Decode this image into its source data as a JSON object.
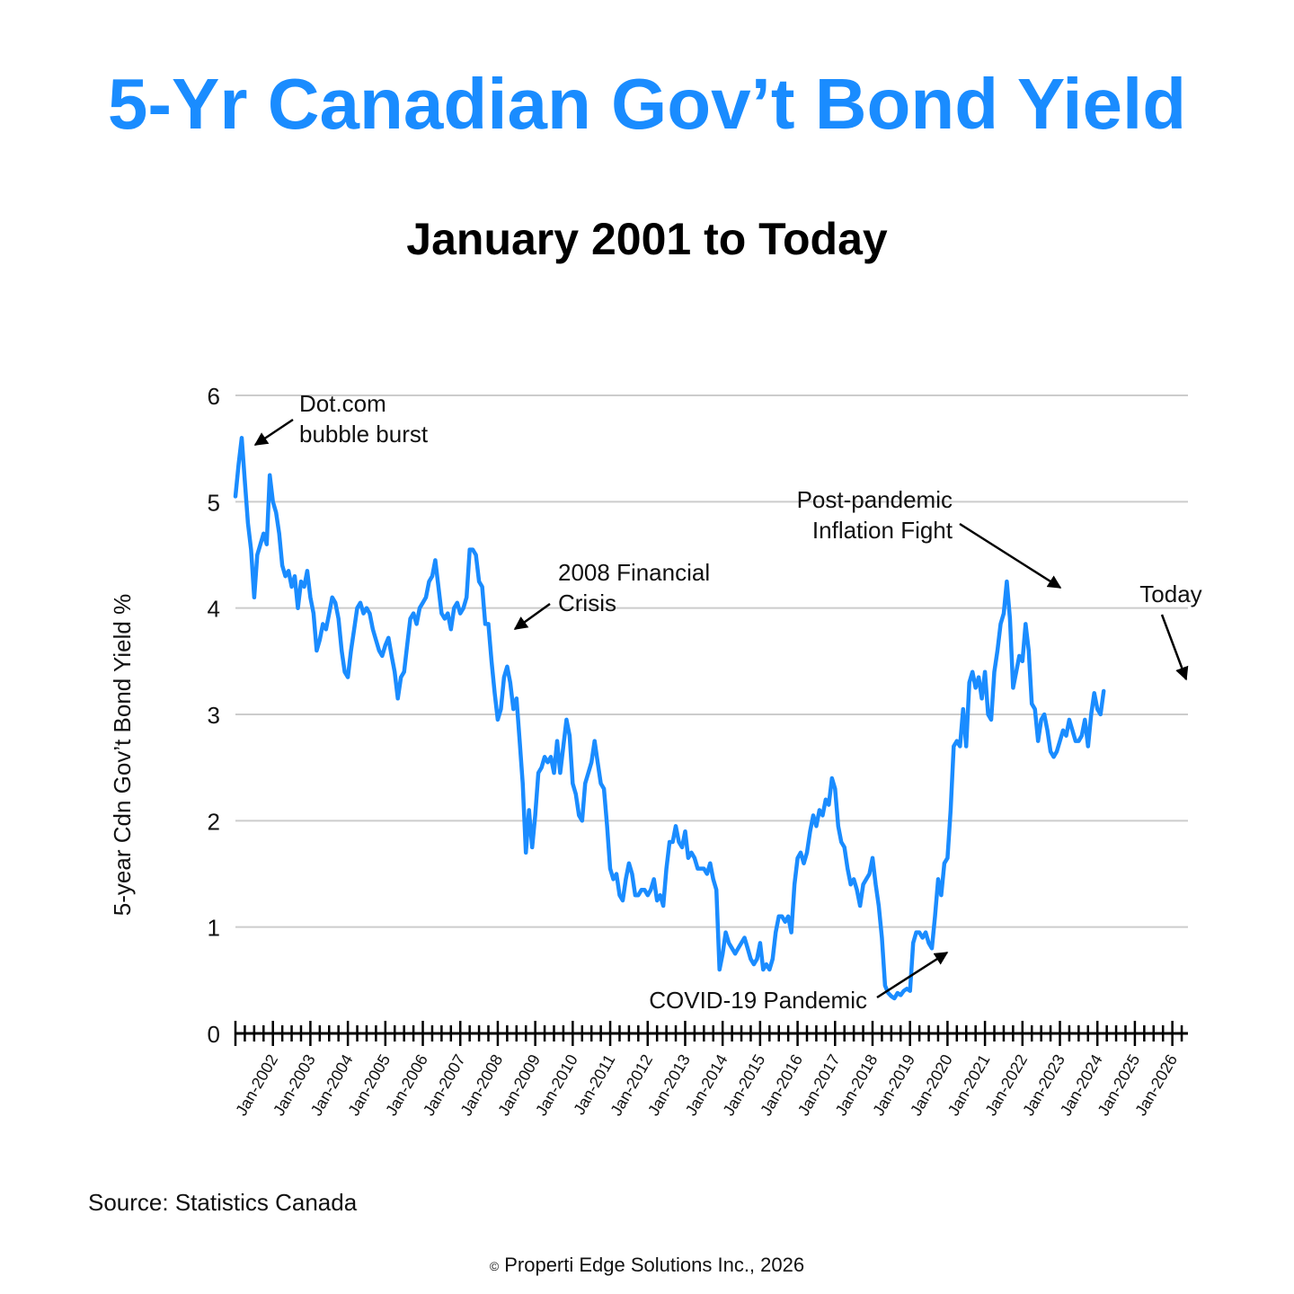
{
  "title": "5-Yr Canadian Gov’t Bond Yield",
  "subtitle": "January 2001 to Today",
  "source": "Source: Statistics Canada",
  "copyright_symbol": "©",
  "copyright": "Properti Edge Solutions Inc., 2026",
  "colors": {
    "title": "#1a8cff",
    "line": "#1a8cff",
    "grid": "#cccccc",
    "axis": "#000000"
  },
  "chart_data": {
    "type": "line",
    "ylabel": "5-year Cdn Gov’t Bond Yield %",
    "xlabel": "",
    "ylim": [
      0,
      6
    ],
    "yticks": [
      0,
      1,
      2,
      3,
      4,
      5,
      6
    ],
    "xlim": [
      "2001-01",
      "2026-06"
    ],
    "grid": true,
    "xtick_labels": [
      "Jan-2002",
      "Jan-2003",
      "Jan-2004",
      "Jan-2005",
      "Jan-2006",
      "Jan-2007",
      "Jan-2008",
      "Jan-2009",
      "Jan-2010",
      "Jan-2011",
      "Jan-2012",
      "Jan-2013",
      "Jan-2014",
      "Jan-2015",
      "Jan-2016",
      "Jan-2017",
      "Jan-2018",
      "Jan-2019",
      "Jan-2020",
      "Jan-2021",
      "Jan-2022",
      "Jan-2023",
      "Jan-2024",
      "Jan-2025",
      "Jan-2026"
    ],
    "series": [
      {
        "name": "",
        "points": [
          [
            "2001-01",
            5.05
          ],
          [
            "2001-02",
            5.35
          ],
          [
            "2001-03",
            5.6
          ],
          [
            "2001-04",
            5.2
          ],
          [
            "2001-05",
            4.8
          ],
          [
            "2001-06",
            4.55
          ],
          [
            "2001-07",
            4.1
          ],
          [
            "2001-08",
            4.5
          ],
          [
            "2001-09",
            4.6
          ],
          [
            "2001-10",
            4.7
          ],
          [
            "2001-11",
            4.6
          ],
          [
            "2001-12",
            5.25
          ],
          [
            "2002-01",
            5.0
          ],
          [
            "2002-02",
            4.9
          ],
          [
            "2002-03",
            4.7
          ],
          [
            "2002-04",
            4.4
          ],
          [
            "2002-05",
            4.3
          ],
          [
            "2002-06",
            4.35
          ],
          [
            "2002-07",
            4.2
          ],
          [
            "2002-08",
            4.3
          ],
          [
            "2002-09",
            4.0
          ],
          [
            "2002-10",
            4.25
          ],
          [
            "2002-11",
            4.2
          ],
          [
            "2002-12",
            4.35
          ],
          [
            "2003-01",
            4.1
          ],
          [
            "2003-02",
            3.95
          ],
          [
            "2003-03",
            3.6
          ],
          [
            "2003-04",
            3.7
          ],
          [
            "2003-05",
            3.85
          ],
          [
            "2003-06",
            3.8
          ],
          [
            "2003-07",
            3.95
          ],
          [
            "2003-08",
            4.1
          ],
          [
            "2003-09",
            4.05
          ],
          [
            "2003-10",
            3.9
          ],
          [
            "2003-11",
            3.6
          ],
          [
            "2003-12",
            3.4
          ],
          [
            "2004-01",
            3.35
          ],
          [
            "2004-02",
            3.6
          ],
          [
            "2004-03",
            3.8
          ],
          [
            "2004-04",
            4.0
          ],
          [
            "2004-05",
            4.05
          ],
          [
            "2004-06",
            3.95
          ],
          [
            "2004-07",
            4.0
          ],
          [
            "2004-08",
            3.95
          ],
          [
            "2004-09",
            3.8
          ],
          [
            "2004-10",
            3.7
          ],
          [
            "2004-11",
            3.6
          ],
          [
            "2004-12",
            3.55
          ],
          [
            "2005-01",
            3.65
          ],
          [
            "2005-02",
            3.72
          ],
          [
            "2005-03",
            3.55
          ],
          [
            "2005-04",
            3.4
          ],
          [
            "2005-05",
            3.15
          ],
          [
            "2005-06",
            3.35
          ],
          [
            "2005-07",
            3.4
          ],
          [
            "2005-08",
            3.65
          ],
          [
            "2005-09",
            3.9
          ],
          [
            "2005-10",
            3.95
          ],
          [
            "2005-11",
            3.85
          ],
          [
            "2005-12",
            4.0
          ],
          [
            "2006-01",
            4.05
          ],
          [
            "2006-02",
            4.1
          ],
          [
            "2006-03",
            4.25
          ],
          [
            "2006-04",
            4.3
          ],
          [
            "2006-05",
            4.45
          ],
          [
            "2006-06",
            4.2
          ],
          [
            "2006-07",
            3.95
          ],
          [
            "2006-08",
            3.9
          ],
          [
            "2006-09",
            3.95
          ],
          [
            "2006-10",
            3.8
          ],
          [
            "2006-11",
            4.0
          ],
          [
            "2006-12",
            4.05
          ],
          [
            "2007-01",
            3.95
          ],
          [
            "2007-02",
            4.0
          ],
          [
            "2007-03",
            4.1
          ],
          [
            "2007-04",
            4.55
          ],
          [
            "2007-05",
            4.55
          ],
          [
            "2007-06",
            4.5
          ],
          [
            "2007-07",
            4.25
          ],
          [
            "2007-08",
            4.2
          ],
          [
            "2007-09",
            3.85
          ],
          [
            "2007-10",
            3.85
          ],
          [
            "2007-11",
            3.5
          ],
          [
            "2007-12",
            3.2
          ],
          [
            "2008-01",
            2.95
          ],
          [
            "2008-02",
            3.05
          ],
          [
            "2008-03",
            3.35
          ],
          [
            "2008-04",
            3.45
          ],
          [
            "2008-05",
            3.3
          ],
          [
            "2008-06",
            3.05
          ],
          [
            "2008-07",
            3.15
          ],
          [
            "2008-08",
            2.75
          ],
          [
            "2008-09",
            2.35
          ],
          [
            "2008-10",
            1.7
          ],
          [
            "2008-11",
            2.1
          ],
          [
            "2008-12",
            1.75
          ],
          [
            "2009-01",
            2.05
          ],
          [
            "2009-02",
            2.45
          ],
          [
            "2009-03",
            2.5
          ],
          [
            "2009-04",
            2.6
          ],
          [
            "2009-05",
            2.55
          ],
          [
            "2009-06",
            2.6
          ],
          [
            "2009-07",
            2.45
          ],
          [
            "2009-08",
            2.75
          ],
          [
            "2009-09",
            2.45
          ],
          [
            "2009-10",
            2.7
          ],
          [
            "2009-11",
            2.95
          ],
          [
            "2009-12",
            2.8
          ],
          [
            "2010-01",
            2.35
          ],
          [
            "2010-02",
            2.25
          ],
          [
            "2010-03",
            2.05
          ],
          [
            "2010-04",
            2.0
          ],
          [
            "2010-05",
            2.35
          ],
          [
            "2010-06",
            2.45
          ],
          [
            "2010-07",
            2.55
          ],
          [
            "2010-08",
            2.75
          ],
          [
            "2010-09",
            2.55
          ],
          [
            "2010-10",
            2.35
          ],
          [
            "2010-11",
            2.3
          ],
          [
            "2010-12",
            1.95
          ],
          [
            "2011-01",
            1.55
          ],
          [
            "2011-02",
            1.45
          ],
          [
            "2011-03",
            1.5
          ],
          [
            "2011-04",
            1.3
          ],
          [
            "2011-05",
            1.25
          ],
          [
            "2011-06",
            1.45
          ],
          [
            "2011-07",
            1.6
          ],
          [
            "2011-08",
            1.5
          ],
          [
            "2011-09",
            1.3
          ],
          [
            "2011-10",
            1.3
          ],
          [
            "2011-11",
            1.35
          ],
          [
            "2011-12",
            1.35
          ],
          [
            "2012-01",
            1.3
          ],
          [
            "2012-02",
            1.35
          ],
          [
            "2012-03",
            1.45
          ],
          [
            "2012-04",
            1.25
          ],
          [
            "2012-05",
            1.3
          ],
          [
            "2012-06",
            1.2
          ],
          [
            "2012-07",
            1.55
          ],
          [
            "2012-08",
            1.8
          ],
          [
            "2012-09",
            1.8
          ],
          [
            "2012-10",
            1.95
          ],
          [
            "2012-11",
            1.8
          ],
          [
            "2012-12",
            1.75
          ],
          [
            "2013-01",
            1.9
          ],
          [
            "2013-02",
            1.65
          ],
          [
            "2013-03",
            1.7
          ],
          [
            "2013-04",
            1.65
          ],
          [
            "2013-05",
            1.55
          ],
          [
            "2013-06",
            1.55
          ],
          [
            "2013-07",
            1.55
          ],
          [
            "2013-08",
            1.5
          ],
          [
            "2013-09",
            1.6
          ],
          [
            "2013-10",
            1.45
          ],
          [
            "2013-11",
            1.35
          ],
          [
            "2013-12",
            0.6
          ],
          [
            "2014-01",
            0.75
          ],
          [
            "2014-02",
            0.95
          ],
          [
            "2014-03",
            0.85
          ],
          [
            "2014-04",
            0.8
          ],
          [
            "2014-05",
            0.75
          ],
          [
            "2014-06",
            0.8
          ],
          [
            "2014-07",
            0.85
          ],
          [
            "2014-08",
            0.9
          ],
          [
            "2014-09",
            0.8
          ],
          [
            "2014-10",
            0.7
          ],
          [
            "2014-11",
            0.65
          ],
          [
            "2014-12",
            0.7
          ],
          [
            "2015-01",
            0.85
          ],
          [
            "2015-02",
            0.6
          ],
          [
            "2015-03",
            0.65
          ],
          [
            "2015-04",
            0.6
          ],
          [
            "2015-05",
            0.7
          ],
          [
            "2015-06",
            0.95
          ],
          [
            "2015-07",
            1.1
          ],
          [
            "2015-08",
            1.1
          ],
          [
            "2015-09",
            1.05
          ],
          [
            "2015-10",
            1.1
          ],
          [
            "2015-11",
            0.95
          ],
          [
            "2015-12",
            1.4
          ],
          [
            "2016-01",
            1.65
          ],
          [
            "2016-02",
            1.7
          ],
          [
            "2016-03",
            1.6
          ],
          [
            "2016-04",
            1.7
          ],
          [
            "2016-05",
            1.9
          ],
          [
            "2016-06",
            2.05
          ],
          [
            "2016-07",
            1.95
          ],
          [
            "2016-08",
            2.1
          ],
          [
            "2016-09",
            2.05
          ],
          [
            "2016-10",
            2.2
          ],
          [
            "2016-11",
            2.15
          ],
          [
            "2016-12",
            2.4
          ],
          [
            "2017-01",
            2.3
          ],
          [
            "2017-02",
            1.95
          ],
          [
            "2017-03",
            1.8
          ],
          [
            "2017-04",
            1.75
          ],
          [
            "2017-05",
            1.55
          ],
          [
            "2017-06",
            1.4
          ],
          [
            "2017-07",
            1.45
          ],
          [
            "2017-08",
            1.35
          ],
          [
            "2017-09",
            1.2
          ],
          [
            "2017-10",
            1.4
          ],
          [
            "2017-11",
            1.45
          ],
          [
            "2017-12",
            1.5
          ],
          [
            "2018-01",
            1.65
          ],
          [
            "2018-02",
            1.4
          ],
          [
            "2018-03",
            1.2
          ],
          [
            "2018-04",
            0.9
          ],
          [
            "2018-05",
            0.45
          ],
          [
            "2018-06",
            0.38
          ],
          [
            "2018-07",
            0.35
          ],
          [
            "2018-08",
            0.33
          ],
          [
            "2018-09",
            0.38
          ],
          [
            "2018-10",
            0.36
          ],
          [
            "2018-11",
            0.4
          ],
          [
            "2018-12",
            0.42
          ],
          [
            "2019-01",
            0.4
          ],
          [
            "2019-02",
            0.85
          ],
          [
            "2019-03",
            0.95
          ],
          [
            "2019-04",
            0.95
          ],
          [
            "2019-05",
            0.9
          ],
          [
            "2019-06",
            0.95
          ],
          [
            "2019-07",
            0.85
          ],
          [
            "2019-08",
            0.8
          ],
          [
            "2019-09",
            1.1
          ],
          [
            "2019-10",
            1.45
          ],
          [
            "2019-11",
            1.3
          ],
          [
            "2019-12",
            1.6
          ],
          [
            "2020-01",
            1.65
          ],
          [
            "2020-02",
            2.1
          ],
          [
            "2020-03",
            2.7
          ],
          [
            "2020-04",
            2.75
          ],
          [
            "2020-05",
            2.7
          ],
          [
            "2020-06",
            3.05
          ],
          [
            "2020-07",
            2.7
          ],
          [
            "2020-08",
            3.3
          ],
          [
            "2020-09",
            3.4
          ],
          [
            "2020-10",
            3.25
          ],
          [
            "2020-11",
            3.35
          ],
          [
            "2020-12",
            3.15
          ],
          [
            "2021-01",
            3.4
          ],
          [
            "2021-02",
            3.0
          ],
          [
            "2021-03",
            2.95
          ],
          [
            "2021-04",
            3.4
          ],
          [
            "2021-05",
            3.6
          ],
          [
            "2021-06",
            3.85
          ],
          [
            "2021-07",
            3.95
          ],
          [
            "2021-08",
            4.25
          ],
          [
            "2021-09",
            3.9
          ],
          [
            "2021-10",
            3.25
          ],
          [
            "2021-11",
            3.4
          ],
          [
            "2021-12",
            3.55
          ],
          [
            "2022-01",
            3.5
          ],
          [
            "2022-02",
            3.85
          ],
          [
            "2022-03",
            3.6
          ],
          [
            "2022-04",
            3.1
          ],
          [
            "2022-05",
            3.05
          ],
          [
            "2022-06",
            2.75
          ],
          [
            "2022-07",
            2.95
          ],
          [
            "2022-08",
            3.0
          ],
          [
            "2022-09",
            2.85
          ],
          [
            "2022-10",
            2.65
          ],
          [
            "2022-11",
            2.6
          ],
          [
            "2022-12",
            2.65
          ],
          [
            "2023-01",
            2.75
          ],
          [
            "2023-02",
            2.85
          ],
          [
            "2023-03",
            2.8
          ],
          [
            "2023-04",
            2.95
          ],
          [
            "2023-05",
            2.85
          ],
          [
            "2023-06",
            2.75
          ],
          [
            "2023-07",
            2.75
          ],
          [
            "2023-08",
            2.8
          ],
          [
            "2023-09",
            2.95
          ],
          [
            "2023-10",
            2.7
          ],
          [
            "2023-11",
            3.0
          ],
          [
            "2023-12",
            3.2
          ],
          [
            "2024-01",
            3.05
          ],
          [
            "2024-02",
            3.0
          ],
          [
            "2024-03",
            3.22
          ]
        ]
      }
    ],
    "annotations": [
      {
        "lines": [
          "Dot.com",
          "bubble burst"
        ]
      },
      {
        "lines": [
          "2008 Financial",
          "Crisis"
        ]
      },
      {
        "lines": [
          "Post-pandemic",
          "Inflation Fight"
        ]
      },
      {
        "lines": [
          "Today"
        ]
      },
      {
        "lines": [
          "COVID-19 Pandemic"
        ]
      }
    ]
  }
}
